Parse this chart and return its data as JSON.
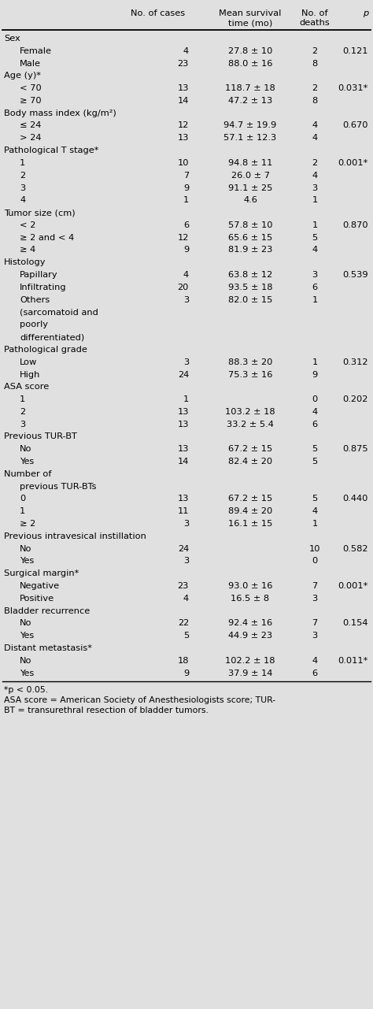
{
  "bg_color": "#e0e0e0",
  "rows": [
    {
      "text": "Sex",
      "level": 0,
      "cases": "",
      "survival": "",
      "deaths": "",
      "p": ""
    },
    {
      "text": "Female",
      "level": 1,
      "cases": "4",
      "survival": "27.8 ± 10",
      "deaths": "2",
      "p": "0.121"
    },
    {
      "text": "Male",
      "level": 1,
      "cases": "23",
      "survival": "88.0 ± 16",
      "deaths": "8",
      "p": ""
    },
    {
      "text": "Age (y)*",
      "level": 0,
      "cases": "",
      "survival": "",
      "deaths": "",
      "p": ""
    },
    {
      "text": "< 70",
      "level": 1,
      "cases": "13",
      "survival": "118.7 ± 18",
      "deaths": "2",
      "p": "0.031*"
    },
    {
      "text": "≥ 70",
      "level": 1,
      "cases": "14",
      "survival": "47.2 ± 13",
      "deaths": "8",
      "p": ""
    },
    {
      "text": "Body mass index (kg/m²)",
      "level": 0,
      "cases": "",
      "survival": "",
      "deaths": "",
      "p": ""
    },
    {
      "text": "≤ 24",
      "level": 1,
      "cases": "12",
      "survival": "94.7 ± 19.9",
      "deaths": "4",
      "p": "0.670"
    },
    {
      "text": "> 24",
      "level": 1,
      "cases": "13",
      "survival": "57.1 ± 12.3",
      "deaths": "4",
      "p": ""
    },
    {
      "text": "Pathological T stage*",
      "level": 0,
      "cases": "",
      "survival": "",
      "deaths": "",
      "p": ""
    },
    {
      "text": "1",
      "level": 1,
      "cases": "10",
      "survival": "94.8 ± 11",
      "deaths": "2",
      "p": "0.001*"
    },
    {
      "text": "2",
      "level": 1,
      "cases": "7",
      "survival": "26.0 ± 7",
      "deaths": "4",
      "p": ""
    },
    {
      "text": "3",
      "level": 1,
      "cases": "9",
      "survival": "91.1 ± 25",
      "deaths": "3",
      "p": ""
    },
    {
      "text": "4",
      "level": 1,
      "cases": "1",
      "survival": "4.6",
      "deaths": "1",
      "p": ""
    },
    {
      "text": "Tumor size (cm)",
      "level": 0,
      "cases": "",
      "survival": "",
      "deaths": "",
      "p": ""
    },
    {
      "text": "< 2",
      "level": 1,
      "cases": "6",
      "survival": "57.8 ± 10",
      "deaths": "1",
      "p": "0.870"
    },
    {
      "text": "≥ 2 and < 4",
      "level": 1,
      "cases": "12",
      "survival": "65.6 ± 15",
      "deaths": "5",
      "p": ""
    },
    {
      "text": "≥ 4",
      "level": 1,
      "cases": "9",
      "survival": "81.9 ± 23",
      "deaths": "4",
      "p": ""
    },
    {
      "text": "Histology",
      "level": 0,
      "cases": "",
      "survival": "",
      "deaths": "",
      "p": ""
    },
    {
      "text": "Papillary",
      "level": 1,
      "cases": "4",
      "survival": "63.8 ± 12",
      "deaths": "3",
      "p": "0.539"
    },
    {
      "text": "Infiltrating",
      "level": 1,
      "cases": "20",
      "survival": "93.5 ± 18",
      "deaths": "6",
      "p": ""
    },
    {
      "text": "Others",
      "level": 1,
      "cases": "3",
      "survival": "82.0 ± 15",
      "deaths": "1",
      "p": ""
    },
    {
      "text": "(sarcomatoid and",
      "level": 1,
      "cases": "",
      "survival": "",
      "deaths": "",
      "p": ""
    },
    {
      "text": "poorly",
      "level": 1,
      "cases": "",
      "survival": "",
      "deaths": "",
      "p": ""
    },
    {
      "text": "differentiated)",
      "level": 1,
      "cases": "",
      "survival": "",
      "deaths": "",
      "p": ""
    },
    {
      "text": "Pathological grade",
      "level": 0,
      "cases": "",
      "survival": "",
      "deaths": "",
      "p": ""
    },
    {
      "text": "Low",
      "level": 1,
      "cases": "3",
      "survival": "88.3 ± 20",
      "deaths": "1",
      "p": "0.312"
    },
    {
      "text": "High",
      "level": 1,
      "cases": "24",
      "survival": "75.3 ± 16",
      "deaths": "9",
      "p": ""
    },
    {
      "text": "ASA score",
      "level": 0,
      "cases": "",
      "survival": "",
      "deaths": "",
      "p": ""
    },
    {
      "text": "1",
      "level": 1,
      "cases": "1",
      "survival": "",
      "deaths": "0",
      "p": "0.202"
    },
    {
      "text": "2",
      "level": 1,
      "cases": "13",
      "survival": "103.2 ± 18",
      "deaths": "4",
      "p": ""
    },
    {
      "text": "3",
      "level": 1,
      "cases": "13",
      "survival": "33.2 ± 5.4",
      "deaths": "6",
      "p": ""
    },
    {
      "text": "Previous TUR-BT",
      "level": 0,
      "cases": "",
      "survival": "",
      "deaths": "",
      "p": ""
    },
    {
      "text": "No",
      "level": 1,
      "cases": "13",
      "survival": "67.2 ± 15",
      "deaths": "5",
      "p": "0.875"
    },
    {
      "text": "Yes",
      "level": 1,
      "cases": "14",
      "survival": "82.4 ± 20",
      "deaths": "5",
      "p": ""
    },
    {
      "text": "Number of",
      "level": 0,
      "cases": "",
      "survival": "",
      "deaths": "",
      "p": ""
    },
    {
      "text": "previous TUR-BTs",
      "level": 2,
      "cases": "",
      "survival": "",
      "deaths": "",
      "p": ""
    },
    {
      "text": "0",
      "level": 1,
      "cases": "13",
      "survival": "67.2 ± 15",
      "deaths": "5",
      "p": "0.440"
    },
    {
      "text": "1",
      "level": 1,
      "cases": "11",
      "survival": "89.4 ± 20",
      "deaths": "4",
      "p": ""
    },
    {
      "text": "≥ 2",
      "level": 1,
      "cases": "3",
      "survival": "16.1 ± 15",
      "deaths": "1",
      "p": ""
    },
    {
      "text": "Previous intravesical instillation",
      "level": 0,
      "cases": "",
      "survival": "",
      "deaths": "",
      "p": ""
    },
    {
      "text": "No",
      "level": 1,
      "cases": "24",
      "survival": "",
      "deaths": "10",
      "p": "0.582"
    },
    {
      "text": "Yes",
      "level": 1,
      "cases": "3",
      "survival": "",
      "deaths": "0",
      "p": ""
    },
    {
      "text": "Surgical margin*",
      "level": 0,
      "cases": "",
      "survival": "",
      "deaths": "",
      "p": ""
    },
    {
      "text": "Negative",
      "level": 1,
      "cases": "23",
      "survival": "93.0 ± 16",
      "deaths": "7",
      "p": "0.001*"
    },
    {
      "text": "Positive",
      "level": 1,
      "cases": "4",
      "survival": "16.5 ± 8",
      "deaths": "3",
      "p": ""
    },
    {
      "text": "Bladder recurrence",
      "level": 0,
      "cases": "",
      "survival": "",
      "deaths": "",
      "p": ""
    },
    {
      "text": "No",
      "level": 1,
      "cases": "22",
      "survival": "92.4 ± 16",
      "deaths": "7",
      "p": "0.154"
    },
    {
      "text": "Yes",
      "level": 1,
      "cases": "5",
      "survival": "44.9 ± 23",
      "deaths": "3",
      "p": ""
    },
    {
      "text": "Distant metastasis*",
      "level": 0,
      "cases": "",
      "survival": "",
      "deaths": "",
      "p": ""
    },
    {
      "text": "No",
      "level": 1,
      "cases": "18",
      "survival": "102.2 ± 18",
      "deaths": "4",
      "p": "0.011*"
    },
    {
      "text": "Yes",
      "level": 1,
      "cases": "9",
      "survival": "37.9 ± 14",
      "deaths": "6",
      "p": ""
    }
  ],
  "footnote1": "*p < 0.05.",
  "footnote2": "ASA score = American Society of Anesthesiologists score; TUR-",
  "footnote3": "BT = transurethral resection of bladder tumors.",
  "col_header1": "No. of cases",
  "col_header2a": "Mean survival",
  "col_header2b": "time (mo)",
  "col_header3a": "No. of",
  "col_header3b": "deaths",
  "col_header4": "p"
}
